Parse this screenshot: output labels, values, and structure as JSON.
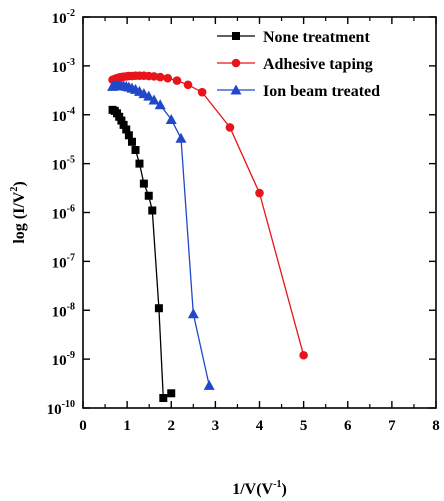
{
  "chart_data": {
    "type": "line",
    "xlabel": {
      "text": "1/V(V",
      "sup": "-1",
      "tail": ")"
    },
    "ylabel": {
      "text": "log (I/V",
      "sup": "2",
      "tail": ")"
    },
    "xlim": [
      0,
      8
    ],
    "ylim_exp": [
      -10,
      -2
    ],
    "y_scale": "log",
    "x_ticks": [
      "0",
      "1",
      "2",
      "3",
      "4",
      "5",
      "6",
      "7",
      "8"
    ],
    "y_ticks": [
      "-10",
      "-9",
      "-8",
      "-7",
      "-6",
      "-5",
      "-4",
      "-3",
      "-2"
    ],
    "y_tick_base": "10",
    "grid": false,
    "legend_position": "top-right",
    "series": [
      {
        "name": "None treatment",
        "color": "#000000",
        "marker": "square",
        "x": [
          0.67,
          0.72,
          0.77,
          0.82,
          0.87,
          0.92,
          0.98,
          1.04,
          1.11,
          1.19,
          1.28,
          1.38,
          1.49,
          1.57,
          1.72,
          1.82,
          2.0
        ],
        "y": [
          0.000126,
          0.00012,
          0.000107,
          9.1e-05,
          7.6e-05,
          6.2e-05,
          5e-05,
          3.8e-05,
          2.8e-05,
          1.9e-05,
          1e-05,
          3.9e-06,
          2.2e-06,
          1.1e-06,
          1.1e-08,
          1.6e-10,
          2e-10
        ]
      },
      {
        "name": "Adhesive taping",
        "color": "#e8141b",
        "marker": "circle",
        "x": [
          0.67,
          0.72,
          0.77,
          0.82,
          0.87,
          0.92,
          0.98,
          1.04,
          1.11,
          1.19,
          1.28,
          1.38,
          1.49,
          1.61,
          1.75,
          1.92,
          2.13,
          2.38,
          2.7,
          3.33,
          4.0,
          5.0
        ],
        "y": [
          0.00052,
          0.00054,
          0.00056,
          0.00058,
          0.00059,
          0.0006,
          0.00061,
          0.00062,
          0.00062,
          0.00063,
          0.00063,
          0.00063,
          0.00062,
          0.00061,
          0.00059,
          0.00056,
          0.0005,
          0.00041,
          0.00029,
          5.5e-05,
          2.5e-06,
          1.2e-09
        ]
      },
      {
        "name": "Ion beam treated",
        "color": "#2148c8",
        "marker": "triangle",
        "x": [
          0.67,
          0.72,
          0.77,
          0.82,
          0.87,
          0.92,
          0.98,
          1.04,
          1.11,
          1.19,
          1.28,
          1.38,
          1.49,
          1.61,
          1.75,
          2.0,
          2.22,
          2.5,
          2.86
        ],
        "y": [
          0.00038,
          0.00039,
          0.0004,
          0.0004,
          0.0004,
          0.00039,
          0.00038,
          0.00037,
          0.00035,
          0.00033,
          0.0003,
          0.00027,
          0.00024,
          0.0002,
          0.00016,
          8e-05,
          3.3e-05,
          8.5e-09,
          2.9e-10
        ]
      }
    ]
  }
}
